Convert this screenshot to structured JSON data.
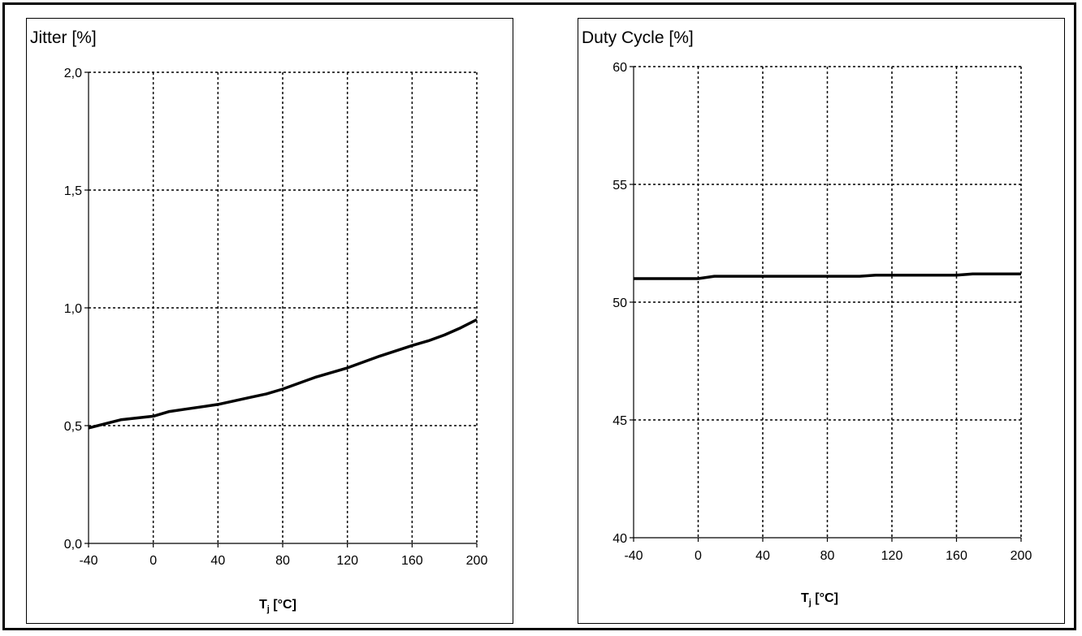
{
  "chart_data": [
    {
      "type": "line",
      "ylabel": "Jitter [%]",
      "xlabel_main": "T",
      "xlabel_sub": "j",
      "xlabel_unit": " [°C]",
      "xlim": [
        -40,
        200
      ],
      "ylim": [
        0.0,
        2.0
      ],
      "xticks": [
        -40,
        0,
        40,
        80,
        120,
        160,
        200
      ],
      "xtick_labels": [
        "-40",
        "0",
        "40",
        "80",
        "120",
        "160",
        "200"
      ],
      "yticks": [
        0.0,
        0.5,
        1.0,
        1.5,
        2.0
      ],
      "ytick_labels": [
        "0,0",
        "0,5",
        "1,0",
        "1,5",
        "2,0"
      ],
      "grid": true,
      "series": [
        {
          "x": [
            -40,
            -20,
            0,
            10,
            20,
            40,
            60,
            70,
            80,
            100,
            120,
            140,
            160,
            170,
            180,
            190,
            200
          ],
          "y": [
            0.49,
            0.525,
            0.54,
            0.56,
            0.57,
            0.59,
            0.62,
            0.635,
            0.655,
            0.705,
            0.745,
            0.795,
            0.84,
            0.86,
            0.885,
            0.915,
            0.95
          ]
        }
      ]
    },
    {
      "type": "line",
      "ylabel": "Duty Cycle [%]",
      "xlabel_main": "T",
      "xlabel_sub": "j",
      "xlabel_unit": " [°C]",
      "xlim": [
        -40,
        200
      ],
      "ylim": [
        40,
        60
      ],
      "xticks": [
        -40,
        0,
        40,
        80,
        120,
        160,
        200
      ],
      "xtick_labels": [
        "-40",
        "0",
        "40",
        "80",
        "120",
        "160",
        "200"
      ],
      "yticks": [
        40,
        45,
        50,
        55,
        60
      ],
      "ytick_labels": [
        "40",
        "45",
        "50",
        "55",
        "60"
      ],
      "grid": true,
      "series": [
        {
          "x": [
            -40,
            0,
            10,
            100,
            110,
            160,
            170,
            200
          ],
          "y": [
            51.0,
            51.0,
            51.1,
            51.1,
            51.15,
            51.15,
            51.2,
            51.2
          ]
        }
      ]
    }
  ]
}
